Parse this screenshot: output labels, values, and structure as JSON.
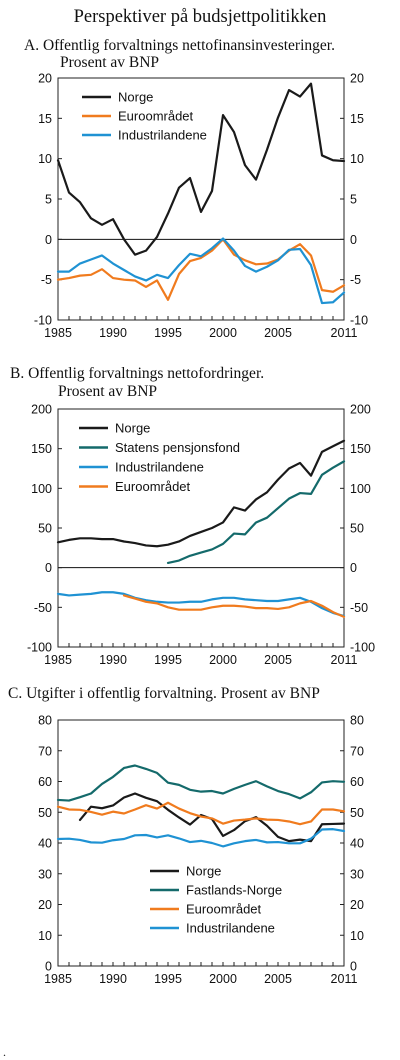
{
  "main_title": "Perspektiver på budsjettpolitikken",
  "footnote": ".",
  "colors": {
    "norge": "#1a1a1a",
    "euro": "#f07b1e",
    "industri": "#1f92d3",
    "teal": "#146a6b"
  },
  "chart_data": [
    {
      "type": "line",
      "title": "A.  Offentlig forvaltnings nettofinansinvesteringer.",
      "subtitle": "Prosent av BNP",
      "xlim": [
        1985,
        2011
      ],
      "ylim": [
        -10,
        20
      ],
      "yticks": [
        -10,
        -5,
        0,
        5,
        10,
        15,
        20
      ],
      "xticks": [
        1985,
        1990,
        1995,
        2000,
        2005,
        2011
      ],
      "grid": false,
      "legend": "top-left",
      "series": [
        {
          "name": "Norge",
          "color": "#1a1a1a",
          "x": [
            1985,
            1986,
            1987,
            1988,
            1989,
            1990,
            1991,
            1992,
            1993,
            1994,
            1995,
            1996,
            1997,
            1998,
            1999,
            2000,
            2001,
            2002,
            2003,
            2004,
            2005,
            2006,
            2007,
            2008,
            2009,
            2010,
            2011
          ],
          "y": [
            9.8,
            5.8,
            4.6,
            2.6,
            1.8,
            2.5,
            0,
            -1.9,
            -1.4,
            0.3,
            3.2,
            6.4,
            7.6,
            3.4,
            6.0,
            15.4,
            13.3,
            9.2,
            7.4,
            11.1,
            15.1,
            18.5,
            17.7,
            19.3,
            10.4,
            9.8,
            9.7
          ]
        },
        {
          "name": "Euroområdet",
          "color": "#f07b1e",
          "x": [
            1985,
            1986,
            1987,
            1988,
            1989,
            1990,
            1991,
            1992,
            1993,
            1994,
            1995,
            1996,
            1997,
            1998,
            1999,
            2000,
            2001,
            2002,
            2003,
            2004,
            2005,
            2006,
            2007,
            2008,
            2009,
            2010,
            2011
          ],
          "y": [
            -5.0,
            -4.8,
            -4.5,
            -4.4,
            -3.7,
            -4.8,
            -5.0,
            -5.1,
            -5.9,
            -5.1,
            -7.5,
            -4.3,
            -2.7,
            -2.3,
            -1.4,
            0.0,
            -1.9,
            -2.6,
            -3.1,
            -3.0,
            -2.5,
            -1.4,
            -0.6,
            -2.0,
            -6.3,
            -6.5,
            -5.7
          ]
        },
        {
          "name": "Industrilandene",
          "color": "#1f92d3",
          "x": [
            1985,
            1986,
            1987,
            1988,
            1989,
            1990,
            1991,
            1992,
            1993,
            1994,
            1995,
            1996,
            1997,
            1998,
            1999,
            2000,
            2001,
            2002,
            2003,
            2004,
            2005,
            2006,
            2007,
            2008,
            2009,
            2010,
            2011
          ],
          "y": [
            -4.0,
            -4.0,
            -3.0,
            -2.5,
            -2.0,
            -3.0,
            -3.8,
            -4.6,
            -5.1,
            -4.4,
            -4.8,
            -3.2,
            -1.8,
            -2.1,
            -1.1,
            0.1,
            -1.4,
            -3.3,
            -4.0,
            -3.4,
            -2.6,
            -1.3,
            -1.2,
            -3.2,
            -7.9,
            -7.8,
            -6.6
          ]
        }
      ]
    },
    {
      "type": "line",
      "title": "B. Offentlig forvaltnings nettofordringer.",
      "subtitle": "Prosent av BNP",
      "xlim": [
        1985,
        2011
      ],
      "ylim": [
        -100,
        200
      ],
      "yticks": [
        -100,
        -50,
        0,
        50,
        100,
        150,
        200
      ],
      "xticks": [
        1985,
        1990,
        1995,
        2000,
        2005,
        2011
      ],
      "grid": false,
      "legend": "top-left",
      "series": [
        {
          "name": "Norge",
          "color": "#1a1a1a",
          "x": [
            1985,
            1986,
            1987,
            1988,
            1989,
            1990,
            1991,
            1992,
            1993,
            1994,
            1995,
            1996,
            1997,
            1998,
            1999,
            2000,
            2001,
            2002,
            2003,
            2004,
            2005,
            2006,
            2007,
            2008,
            2009,
            2010,
            2011
          ],
          "y": [
            32,
            35,
            37,
            37,
            36,
            36,
            33,
            31,
            28,
            27,
            29,
            33,
            40,
            45,
            50,
            57,
            76,
            72,
            86,
            95,
            111,
            125,
            132,
            116,
            146,
            153,
            160
          ]
        },
        {
          "name": "Statens pensjonsfond",
          "color": "#146a6b",
          "x": [
            1995,
            1996,
            1997,
            1998,
            1999,
            2000,
            2001,
            2002,
            2003,
            2004,
            2005,
            2006,
            2007,
            2008,
            2009,
            2010,
            2011
          ],
          "y": [
            6,
            9,
            15,
            19,
            23,
            30,
            43,
            42,
            57,
            63,
            75,
            87,
            94,
            93,
            117,
            126,
            134
          ]
        },
        {
          "name": "Industrilandene",
          "color": "#1f92d3",
          "x": [
            1985,
            1986,
            1987,
            1988,
            1989,
            1990,
            1991,
            1992,
            1993,
            1994,
            1995,
            1996,
            1997,
            1998,
            1999,
            2000,
            2001,
            2002,
            2003,
            2004,
            2005,
            2006,
            2007,
            2008,
            2009,
            2010,
            2011
          ],
          "y": [
            -33,
            -35,
            -34,
            -33,
            -31,
            -31,
            -33,
            -38,
            -41,
            -43,
            -44,
            -44,
            -43,
            -43,
            -40,
            -38,
            -38,
            -40,
            -41,
            -42,
            -42,
            -40,
            -38,
            -43,
            -51,
            -57,
            -61
          ]
        },
        {
          "name": "Euroområdet",
          "color": "#f07b1e",
          "x": [
            1991,
            1992,
            1993,
            1994,
            1995,
            1996,
            1997,
            1998,
            1999,
            2000,
            2001,
            2002,
            2003,
            2004,
            2005,
            2006,
            2007,
            2008,
            2009,
            2010,
            2011
          ],
          "y": [
            -35,
            -39,
            -43,
            -45,
            -50,
            -53,
            -53,
            -53,
            -50,
            -48,
            -48,
            -49,
            -51,
            -51,
            -52,
            -50,
            -45,
            -42,
            -48,
            -56,
            -62
          ]
        }
      ]
    },
    {
      "type": "line",
      "title": "C. Utgifter i offentlig forvaltning. Prosent av BNP",
      "xlim": [
        1985,
        2011
      ],
      "ylim": [
        0,
        80
      ],
      "yticks": [
        0,
        10,
        20,
        30,
        40,
        50,
        60,
        70,
        80
      ],
      "xticks": [
        1985,
        1990,
        1995,
        2000,
        2005,
        2011
      ],
      "grid": false,
      "legend": "bottom-center",
      "series": [
        {
          "name": "Norge",
          "color": "#1a1a1a",
          "x": [
            1987,
            1988,
            1989,
            1990,
            1991,
            1992,
            1993,
            1994,
            1995,
            1996,
            1997,
            1998,
            1999,
            2000,
            2001,
            2002,
            2003,
            2004,
            2005,
            2006,
            2007,
            2008,
            2009,
            2010,
            2011
          ],
          "y": [
            47.5,
            51.8,
            51.3,
            52.2,
            54.8,
            56.1,
            54.7,
            53.6,
            50.8,
            48.3,
            46.0,
            49.1,
            47.8,
            42.3,
            44.2,
            47.1,
            48.4,
            45.6,
            42.0,
            40.6,
            41.1,
            40.6,
            46.1,
            46.2,
            46.3
          ]
        },
        {
          "name": "Fastlands-Norge",
          "color": "#146a6b",
          "x": [
            1985,
            1986,
            1987,
            1988,
            1989,
            1990,
            1991,
            1992,
            1993,
            1994,
            1995,
            1996,
            1997,
            1998,
            1999,
            2000,
            2001,
            2002,
            2003,
            2004,
            2005,
            2006,
            2007,
            2008,
            2009,
            2010,
            2011
          ],
          "y": [
            54.0,
            53.8,
            54.9,
            56.1,
            59.2,
            61.5,
            64.4,
            65.2,
            64.1,
            62.8,
            59.6,
            58.9,
            57.3,
            56.7,
            56.9,
            56.1,
            57.6,
            58.9,
            60.1,
            58.4,
            56.9,
            55.9,
            54.5,
            56.5,
            59.7,
            60.1,
            59.9
          ]
        },
        {
          "name": "Euroområdet",
          "color": "#f07b1e",
          "x": [
            1985,
            1986,
            1987,
            1988,
            1989,
            1990,
            1991,
            1992,
            1993,
            1994,
            1995,
            1996,
            1997,
            1998,
            1999,
            2000,
            2001,
            2002,
            2003,
            2004,
            2005,
            2006,
            2007,
            2008,
            2009,
            2010,
            2011
          ],
          "y": [
            51.8,
            50.9,
            50.8,
            50.1,
            49.2,
            50.2,
            49.6,
            50.9,
            52.3,
            51.2,
            53.1,
            51.2,
            49.7,
            48.6,
            48.0,
            46.3,
            47.3,
            47.6,
            48.0,
            47.6,
            47.5,
            47.0,
            46.1,
            47.0,
            50.9,
            50.9,
            50.3
          ]
        },
        {
          "name": "Industrilandene",
          "color": "#1f92d3",
          "x": [
            1985,
            1986,
            1987,
            1988,
            1989,
            1990,
            1991,
            1992,
            1993,
            1994,
            1995,
            1996,
            1997,
            1998,
            1999,
            2000,
            2001,
            2002,
            2003,
            2004,
            2005,
            2006,
            2007,
            2008,
            2009,
            2010,
            2011
          ],
          "y": [
            41.3,
            41.4,
            41.0,
            40.2,
            40.1,
            40.9,
            41.3,
            42.5,
            42.6,
            41.8,
            42.5,
            41.5,
            40.3,
            40.7,
            40.0,
            38.9,
            39.9,
            40.6,
            41.0,
            40.2,
            40.3,
            39.9,
            39.9,
            41.4,
            44.4,
            44.5,
            43.9
          ]
        }
      ]
    }
  ]
}
